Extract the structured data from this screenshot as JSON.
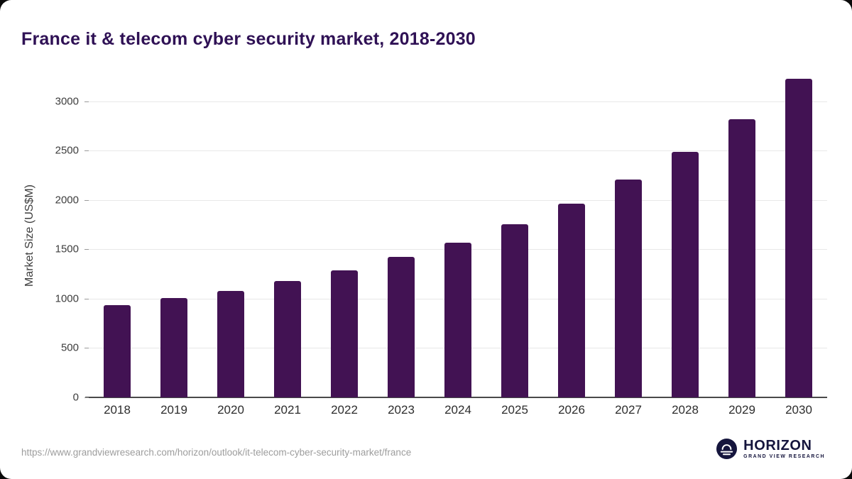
{
  "title": "France it & telecom cyber security market, 2018-2030",
  "source_url": "https://www.grandviewresearch.com/horizon/outlook/it-telecom-cyber-security-market/france",
  "logo": {
    "name": "HORIZON",
    "subtitle": "GRAND VIEW RESEARCH"
  },
  "colors": {
    "bar": "#421253",
    "title": "#2f1155",
    "axis_text": "#3d3d3d",
    "gridline": "#e8e8e8",
    "axis_line": "#4a4a4a",
    "url_text": "#9d9d9d",
    "logo_navy": "#15153d"
  },
  "chart_data": {
    "type": "bar",
    "title": "France it & telecom cyber security market, 2018-2030",
    "xlabel": "",
    "ylabel": "Market Size (US$M)",
    "categories": [
      "2018",
      "2019",
      "2020",
      "2021",
      "2022",
      "2023",
      "2024",
      "2025",
      "2026",
      "2027",
      "2028",
      "2029",
      "2030"
    ],
    "values": [
      935,
      1005,
      1080,
      1180,
      1290,
      1420,
      1570,
      1755,
      1960,
      2205,
      2485,
      2820,
      3230
    ],
    "yticks": [
      0,
      500,
      1000,
      1500,
      2000,
      2500,
      3000
    ],
    "ylim": [
      0,
      3270
    ],
    "grid": true,
    "legend": false,
    "bar_color": "#421253"
  }
}
